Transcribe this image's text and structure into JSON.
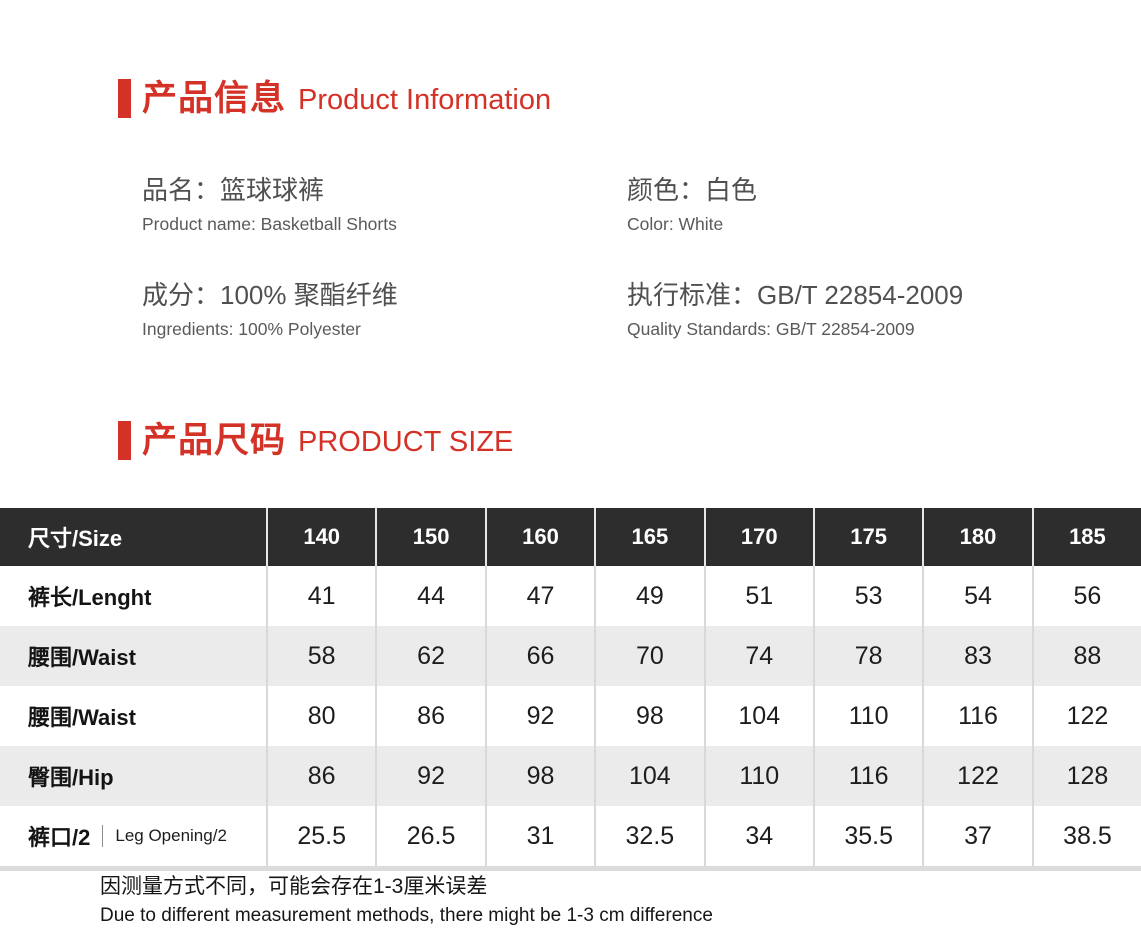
{
  "colors": {
    "accent_red": "#d43127",
    "table_header_bg": "#2d2d2d",
    "table_alt_row_bg": "#ebebeb",
    "table_divider": "#d9d9d9",
    "text_dark": "#1a1a1a",
    "text_gray": "#505052"
  },
  "section_product_info": {
    "title_zh": "产品信息",
    "title_en": "Product Information",
    "fields": [
      {
        "zh": "品名：篮球球裤",
        "en": "Product name: Basketball Shorts"
      },
      {
        "zh": "颜色：白色",
        "en": "Color: White"
      },
      {
        "zh": "成分：100% 聚酯纤维",
        "en": "Ingredients: 100% Polyester"
      },
      {
        "zh": "执行标准：GB/T 22854-2009",
        "en": "Quality Standards: GB/T 22854-2009"
      }
    ]
  },
  "section_size": {
    "title_zh": "产品尺码",
    "title_en": "PRODUCT SIZE"
  },
  "size_table": {
    "header_label": "尺寸/Size",
    "sizes": [
      "140",
      "150",
      "160",
      "165",
      "170",
      "175",
      "180",
      "185"
    ],
    "rows": [
      {
        "label": "裤长/Lenght",
        "values": [
          "41",
          "44",
          "47",
          "49",
          "51",
          "53",
          "54",
          "56"
        ]
      },
      {
        "label": "腰围/Waist",
        "values": [
          "58",
          "62",
          "66",
          "70",
          "74",
          "78",
          "83",
          "88"
        ]
      },
      {
        "label": "腰围/Waist",
        "values": [
          "80",
          "86",
          "92",
          "98",
          "104",
          "110",
          "116",
          "122"
        ]
      },
      {
        "label": "臀围/Hip",
        "values": [
          "86",
          "92",
          "98",
          "104",
          "110",
          "116",
          "122",
          "128"
        ]
      },
      {
        "label_zh": "裤口/2",
        "label_en": "Leg Opening/2",
        "values": [
          "25.5",
          "26.5",
          "31",
          "32.5",
          "34",
          "35.5",
          "37",
          "38.5"
        ]
      }
    ]
  },
  "footer": {
    "zh": "因测量方式不同，可能会存在1-3厘米误差",
    "en": "Due to different measurement methods, there might be 1-3 cm difference"
  }
}
